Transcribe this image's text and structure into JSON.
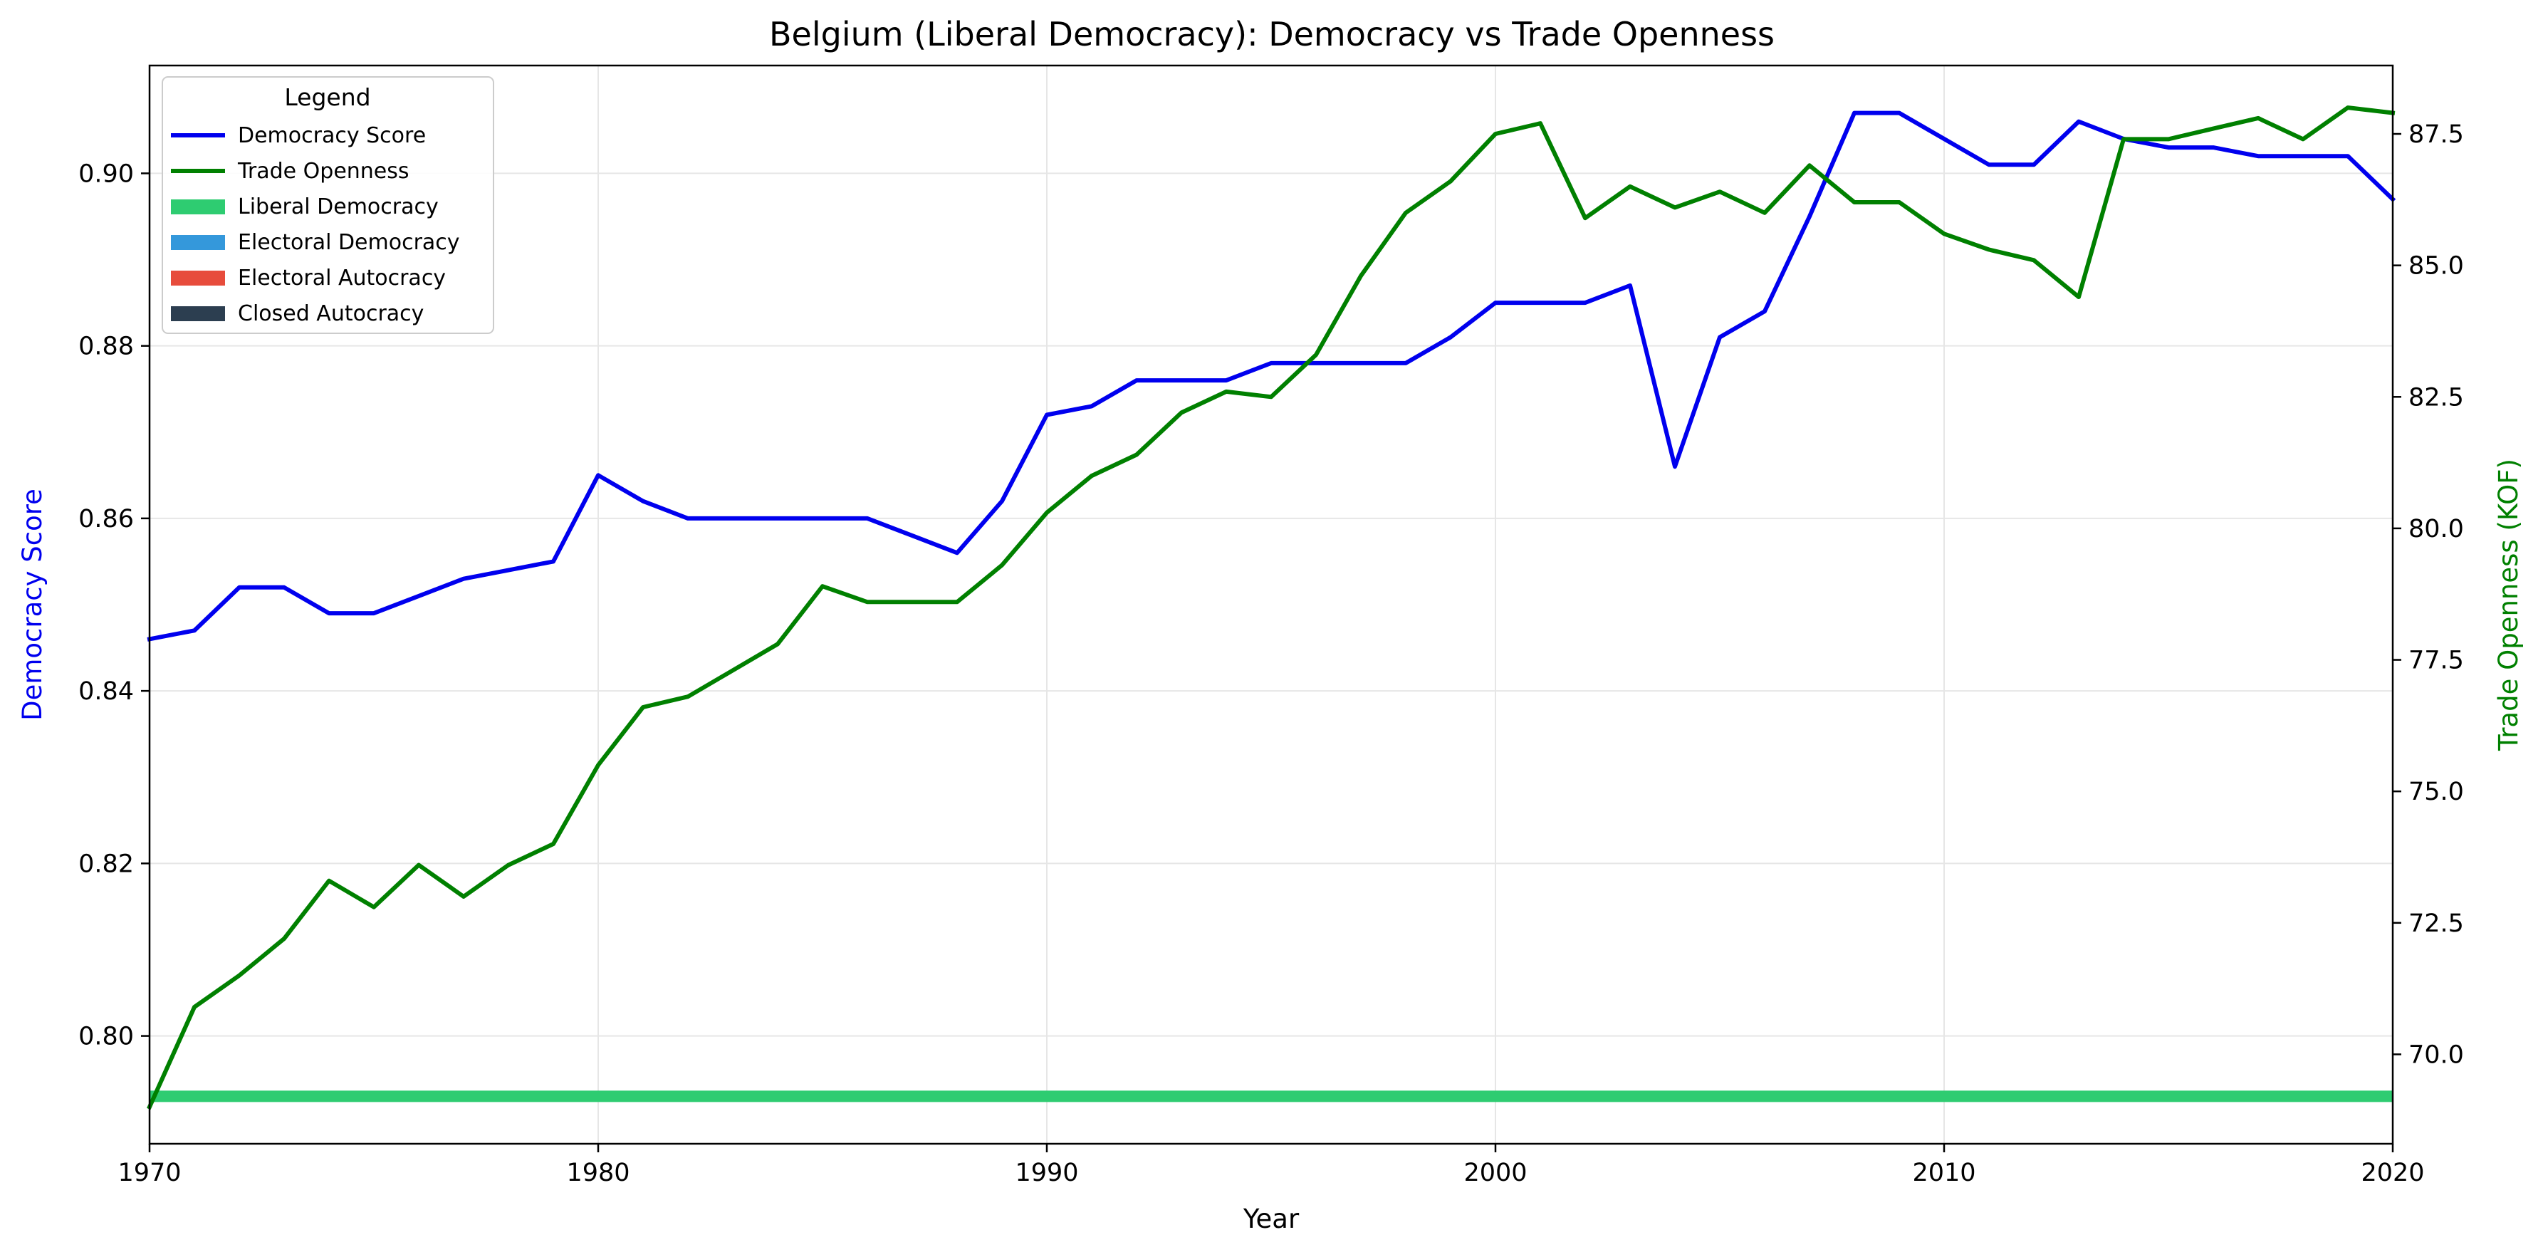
{
  "chart_data": {
    "type": "line",
    "title": "Belgium (Liberal Democracy): Democracy vs Trade Openness",
    "xlabel": "Year",
    "ylabel": "Democracy Score",
    "y2label": "Trade Openness (KOF)",
    "xlim": [
      1970,
      2020
    ],
    "ylim": [
      0.7875,
      0.9125
    ],
    "y2lim": [
      68.3,
      88.8
    ],
    "x_ticks": [
      1970,
      1980,
      1990,
      2000,
      2010,
      2020
    ],
    "y_ticks": [
      "0.80",
      "0.82",
      "0.84",
      "0.86",
      "0.88",
      "0.90"
    ],
    "y2_ticks": [
      "70.0",
      "72.5",
      "75.0",
      "77.5",
      "80.0",
      "82.5",
      "85.0",
      "87.5"
    ],
    "grid": true,
    "legend_title": "Legend",
    "legend_placement": "top-left",
    "legend": [
      {
        "label": "Democracy Score",
        "kind": "line",
        "color": "#0000ee"
      },
      {
        "label": "Trade Openness",
        "kind": "line",
        "color": "#008000"
      },
      {
        "label": "Liberal Democracy",
        "kind": "patch",
        "color": "#2ecc71"
      },
      {
        "label": "Electoral Democracy",
        "kind": "patch",
        "color": "#3498db"
      },
      {
        "label": "Electoral Autocracy",
        "kind": "patch",
        "color": "#e74c3c"
      },
      {
        "label": "Closed Autocracy",
        "kind": "patch",
        "color": "#2c3e50"
      }
    ],
    "regime_band": {
      "label": "Liberal Democracy",
      "color": "#2ecc71",
      "x_start": 1970,
      "x_end": 2020,
      "y": 0.793
    },
    "x": [
      1970,
      1971,
      1972,
      1973,
      1974,
      1975,
      1976,
      1977,
      1978,
      1979,
      1980,
      1981,
      1982,
      1983,
      1984,
      1985,
      1986,
      1987,
      1988,
      1989,
      1990,
      1991,
      1992,
      1993,
      1994,
      1995,
      1996,
      1997,
      1998,
      1999,
      2000,
      2001,
      2002,
      2003,
      2004,
      2005,
      2006,
      2007,
      2008,
      2009,
      2010,
      2011,
      2012,
      2013,
      2014,
      2015,
      2016,
      2017,
      2018,
      2019,
      2020
    ],
    "series": [
      {
        "name": "Democracy Score",
        "axis": "left",
        "color": "#0000ee",
        "values": [
          0.846,
          0.847,
          0.852,
          0.852,
          0.849,
          0.849,
          0.851,
          0.853,
          0.854,
          0.855,
          0.865,
          0.862,
          0.86,
          0.86,
          0.86,
          0.86,
          0.86,
          0.858,
          0.856,
          0.862,
          0.872,
          0.873,
          0.876,
          0.876,
          0.876,
          0.878,
          0.878,
          0.878,
          0.878,
          0.881,
          0.885,
          0.885,
          0.885,
          0.887,
          0.866,
          0.881,
          0.884,
          0.895,
          0.907,
          0.907,
          0.904,
          0.901,
          0.901,
          0.906,
          0.904,
          0.903,
          0.903,
          0.902,
          0.902,
          0.902,
          0.897
        ]
      },
      {
        "name": "Trade Openness",
        "axis": "right",
        "color": "#008000",
        "values": [
          69.0,
          70.9,
          71.5,
          72.2,
          73.3,
          72.8,
          73.6,
          73.0,
          73.6,
          74.0,
          75.5,
          76.6,
          76.8,
          77.3,
          77.8,
          78.9,
          78.6,
          78.6,
          78.6,
          79.3,
          80.3,
          81.0,
          81.4,
          82.2,
          82.6,
          82.5,
          83.3,
          84.8,
          86.0,
          86.6,
          87.5,
          87.7,
          85.9,
          86.5,
          86.1,
          86.4,
          86.0,
          86.9,
          86.2,
          86.2,
          85.6,
          85.3,
          85.1,
          84.4,
          87.4,
          87.4,
          87.6,
          87.8,
          87.4,
          88.0,
          87.9
        ]
      }
    ]
  }
}
